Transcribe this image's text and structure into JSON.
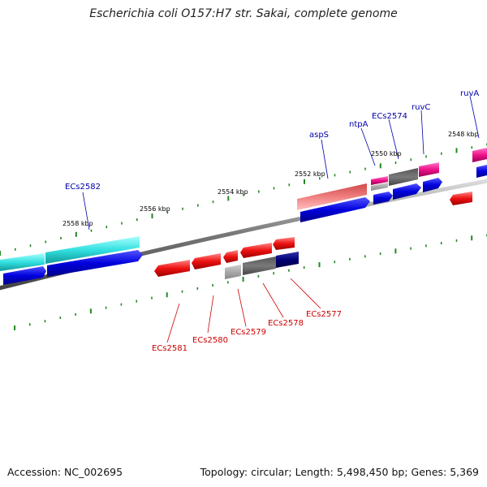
{
  "title": "Escherichia coli O157:H7 str. Sakai, complete genome",
  "footer": {
    "accession": "Accession: NC_002695",
    "summary": "Topology: circular; Length: 5,498,450 bp; Genes: 5,369"
  },
  "colors": {
    "backbone": "#777777",
    "forward_gene": "#0000dd",
    "reverse_gene": "#ee1111",
    "teal": "#33e0e0",
    "pink": "#f07070",
    "magenta": "#ee1188",
    "gray": "#666666",
    "light_gray": "#aaaaaa",
    "navy": "#000077",
    "tick": "#228822",
    "label_top": "#0000aa",
    "label_bottom": "#cc0000"
  },
  "kbp_ticks": [
    "2558 kbp",
    "2556 kbp",
    "2554 kbp",
    "2552 kbp",
    "2550 kbp",
    "2548 kbp"
  ],
  "top_labels": [
    "ECs2582",
    "aspS",
    "ntpA",
    "ECs2574",
    "ruvC",
    "ruvA"
  ],
  "bottom_labels": [
    "ECs2581",
    "ECs2580",
    "ECs2579",
    "ECs2578",
    "ECs2577"
  ]
}
